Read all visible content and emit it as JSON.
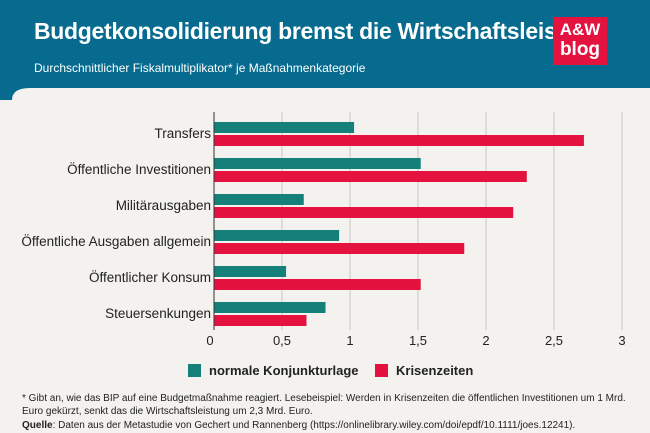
{
  "header": {
    "title": "Budgetkonsolidierung bremst die Wirtschaftsleistung",
    "subtitle": "Durchschnittlicher Fiskalmultiplikator* je Maßnahmenkategorie"
  },
  "logo": {
    "line1": "A&W",
    "line2": "blog"
  },
  "colors": {
    "header_bg": "#066b8f",
    "normal": "#157f7a",
    "crisis": "#e3123f",
    "logo": "#e3123f",
    "background": "#f4f2ef"
  },
  "chart_data": {
    "type": "bar",
    "orientation": "horizontal",
    "title": "Budgetkonsolidierung bremst die Wirtschaftsleistung",
    "subtitle": "Durchschnittlicher Fiskalmultiplikator* je Maßnahmenkategorie",
    "categories": [
      "Transfers",
      "Öffentliche Investitionen",
      "Militärausgaben",
      "Öffentliche Ausgaben allgemein",
      "Öffentlicher Konsum",
      "Steuersenkungen"
    ],
    "series": [
      {
        "name": "normale Konjunkturlage",
        "color": "#157f7a",
        "values": [
          1.03,
          1.52,
          0.66,
          0.92,
          0.53,
          0.82
        ]
      },
      {
        "name": "Krisenzeiten",
        "color": "#e3123f",
        "values": [
          2.72,
          2.3,
          2.2,
          1.84,
          1.52,
          0.68
        ]
      }
    ],
    "xlim": [
      0,
      3
    ],
    "ticks": [
      0,
      0.5,
      1,
      1.5,
      2,
      2.5,
      3
    ],
    "tick_labels": [
      "0",
      "0,5",
      "1",
      "1,5",
      "2",
      "2,5",
      "3"
    ],
    "xlabel": "",
    "ylabel": "",
    "grid": "vertical",
    "legend": "bottom-center"
  },
  "footnote": "* Gibt an, wie das BIP auf eine Budgetmaßnahme reagiert. Lesebeispiel: Werden in Krisenzeiten die öffentlichen Investitionen um 1 Mrd. Euro gekürzt, senkt das die Wirtschaftsleistung um 2,3 Mrd. Euro.",
  "source": {
    "label": "Quelle",
    "text": ": Daten aus der Metastudie von Gechert und Rannenberg (https://onlinelibrary.wiley.com/doi/epdf/10.1111/joes.12241)."
  }
}
